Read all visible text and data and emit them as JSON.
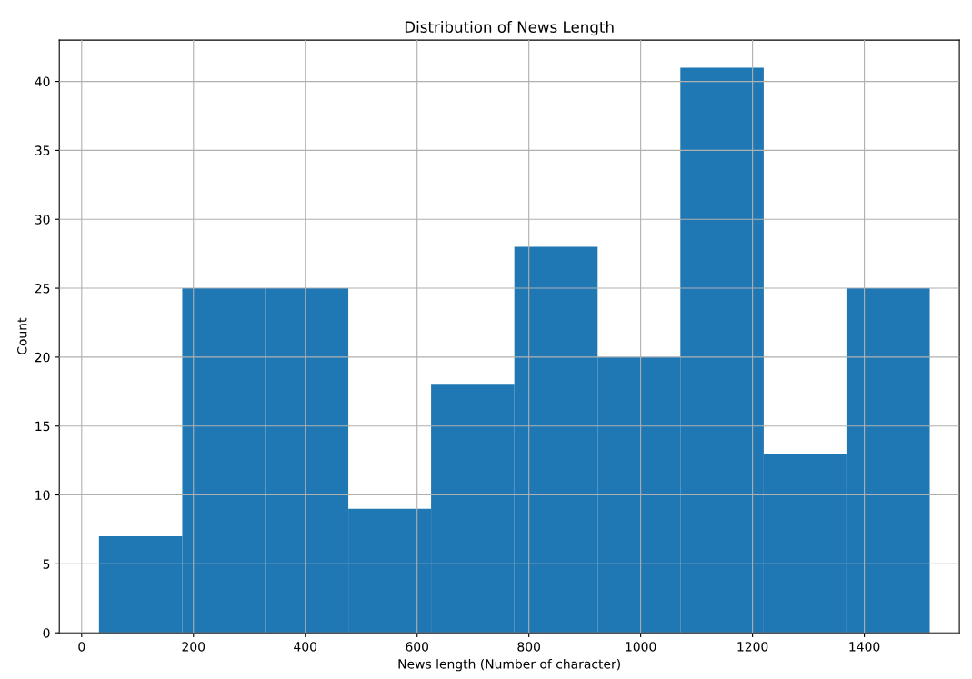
{
  "chart_data": {
    "type": "histogram",
    "title": "Distribution of News Length",
    "xlabel": "News length (Number of character)",
    "ylabel": "Count",
    "bins": [
      31,
      180,
      328,
      477,
      625,
      774,
      923,
      1071,
      1220,
      1368,
      1517
    ],
    "values": [
      7,
      25,
      25,
      9,
      18,
      28,
      20,
      41,
      13,
      25
    ],
    "color": "#1f77b4",
    "xlim": [
      -40,
      1570
    ],
    "xticks": [
      0,
      200,
      400,
      600,
      800,
      1000,
      1200,
      1400
    ],
    "ylim": [
      0,
      43
    ],
    "yticks": [
      0,
      5,
      10,
      15,
      20,
      25,
      30,
      35,
      40
    ],
    "grid": true
  }
}
